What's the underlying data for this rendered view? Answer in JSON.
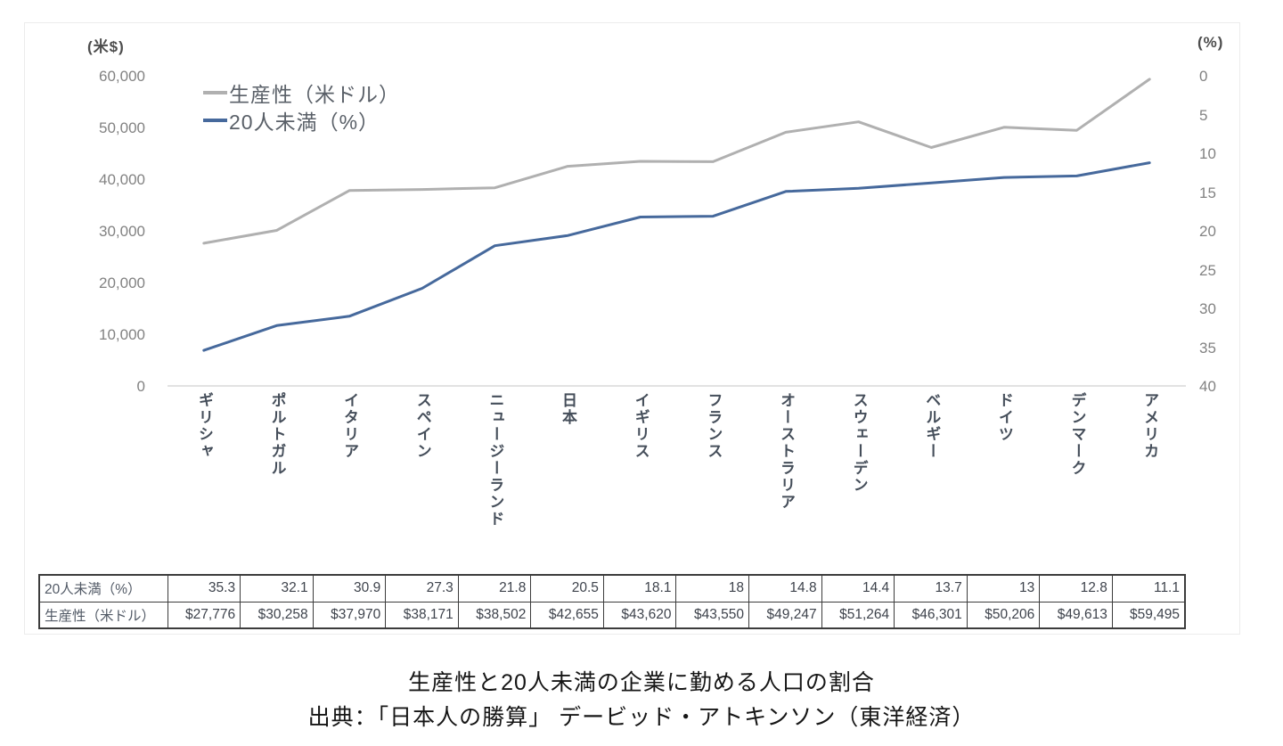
{
  "chart_data": {
    "type": "line",
    "title": "生産性と20人未満の企業に勤める人口の割合",
    "categories": [
      "ギリシャ",
      "ポルトガル",
      "イタリア",
      "スペイン",
      "ニュージーランド",
      "日本",
      "イギリス",
      "フランス",
      "オーストラリア",
      "スウェーデン",
      "ベルギー",
      "ドイツ",
      "デンマーク",
      "アメリカ"
    ],
    "series": [
      {
        "name": "生産性（米ドル）",
        "axis": "left",
        "color": "#b0b0b0",
        "values": [
          27776,
          30258,
          37970,
          38171,
          38502,
          42655,
          43620,
          43550,
          49247,
          51264,
          46301,
          50206,
          49613,
          59495
        ]
      },
      {
        "name": "20人未満（%）",
        "axis": "right",
        "color": "#46699c",
        "values": [
          35.3,
          32.1,
          30.9,
          27.3,
          21.8,
          20.5,
          18.1,
          18,
          14.8,
          14.4,
          13.7,
          13,
          12.8,
          11.1
        ]
      }
    ],
    "left_axis": {
      "unit": "(米$)",
      "min": 0,
      "max": 60000,
      "ticks": [
        "60,000",
        "50,000",
        "40,000",
        "30,000",
        "20,000",
        "10,000",
        "0"
      ]
    },
    "right_axis": {
      "unit": "(%)",
      "min": 0,
      "max": 40,
      "inverted": true,
      "ticks": [
        "0",
        "5",
        "10",
        "15",
        "20",
        "25",
        "30",
        "35",
        "40"
      ]
    },
    "legend_position": "top-left",
    "grid": false
  },
  "table": {
    "rows": [
      {
        "label": "20人未満（%）",
        "values": [
          "35.3",
          "32.1",
          "30.9",
          "27.3",
          "21.8",
          "20.5",
          "18.1",
          "18",
          "14.8",
          "14.4",
          "13.7",
          "13",
          "12.8",
          "11.1"
        ]
      },
      {
        "label": "生産性（米ドル）",
        "values": [
          "$27,776",
          "$30,258",
          "$37,970",
          "$38,171",
          "$38,502",
          "$42,655",
          "$43,620",
          "$43,550",
          "$49,247",
          "$51,264",
          "$46,301",
          "$50,206",
          "$49,613",
          "$59,495"
        ]
      }
    ]
  },
  "caption": {
    "title": "生産性と20人未満の企業に勤める人口の割合",
    "source": "出典：「日本人の勝算」 デービッド・アトキンソン（東洋経済）"
  }
}
